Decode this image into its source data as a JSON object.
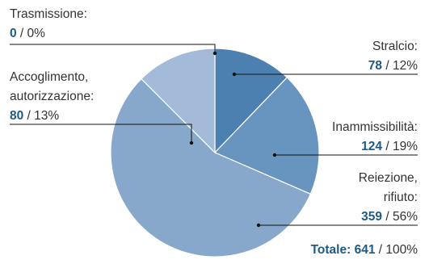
{
  "chart_data": {
    "type": "pie",
    "title": "",
    "slices": [
      {
        "label_lines": [
          "Trasmissione:"
        ],
        "value": 0,
        "percent": "0%",
        "color": "#b7cbe0"
      },
      {
        "label_lines": [
          "Stralcio:"
        ],
        "value": 78,
        "percent": "12%",
        "color": "#4b80b1"
      },
      {
        "label_lines": [
          "Inammissibilità:"
        ],
        "value": 124,
        "percent": "19%",
        "color": "#6894c0"
      },
      {
        "label_lines": [
          "Reiezione,",
          "rifiuto:"
        ],
        "value": 359,
        "percent": "56%",
        "color": "#87a7cb"
      },
      {
        "label_lines": [
          "Accoglimento,",
          "autorizzazione:"
        ],
        "value": 80,
        "percent": "13%",
        "color": "#a3bad8"
      }
    ],
    "total": {
      "label": "Totale:",
      "value": 641,
      "percent": "100%"
    },
    "separator": " / "
  }
}
